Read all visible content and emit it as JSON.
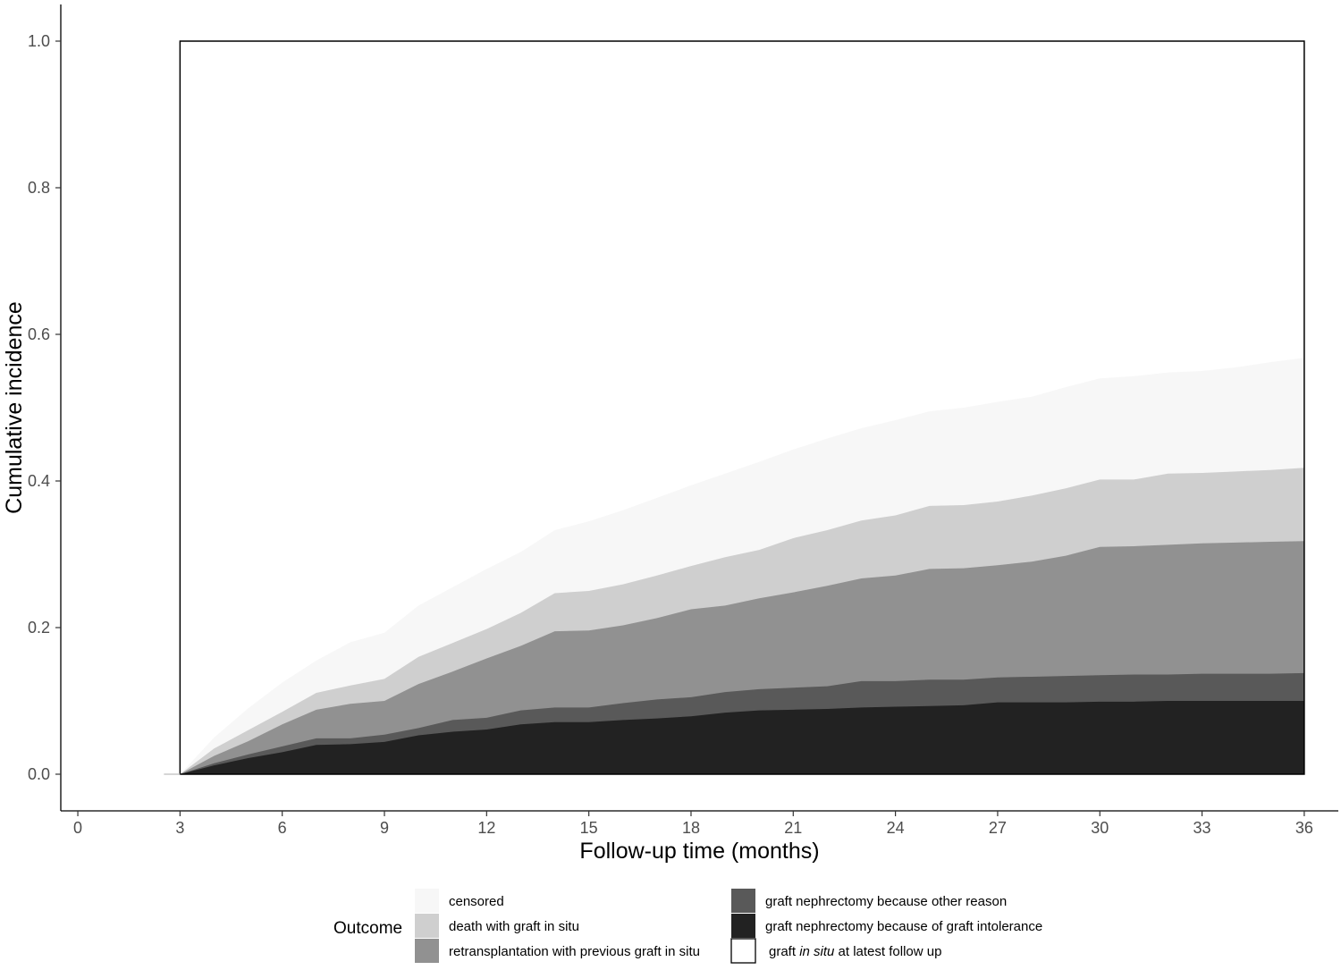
{
  "chart_data": {
    "type": "area",
    "stacked": true,
    "xlabel": "Follow-up time (months)",
    "ylabel": "Cumulative incidence",
    "xlim": [
      -0.5,
      37
    ],
    "ylim": [
      -0.05,
      1.05
    ],
    "x_ticks": [
      0,
      3,
      6,
      9,
      12,
      15,
      18,
      21,
      24,
      27,
      30,
      33,
      36
    ],
    "y_ticks": [
      0.0,
      0.2,
      0.4,
      0.6,
      0.8,
      1.0
    ],
    "y_tick_labels": [
      "0.0",
      "0.2",
      "0.4",
      "0.6",
      "0.8",
      "1.0"
    ],
    "grid": false,
    "legend_position": "bottom",
    "legend_title": "Outcome",
    "x": [
      3,
      4,
      5,
      6,
      7,
      8,
      9,
      10,
      11,
      12,
      13,
      14,
      15,
      16,
      17,
      18,
      19,
      20,
      21,
      22,
      23,
      24,
      25,
      26,
      27,
      28,
      29,
      30,
      31,
      32,
      33,
      34,
      35,
      36
    ],
    "series": [
      {
        "name": "graft nephrectomy because of graft intolerance",
        "color": "#222222",
        "cumulative": [
          0.0,
          0.012,
          0.022,
          0.03,
          0.04,
          0.041,
          0.044,
          0.053,
          0.058,
          0.061,
          0.068,
          0.071,
          0.071,
          0.074,
          0.076,
          0.079,
          0.084,
          0.087,
          0.088,
          0.089,
          0.091,
          0.092,
          0.093,
          0.094,
          0.098,
          0.098,
          0.098,
          0.099,
          0.099,
          0.1,
          0.1,
          0.1,
          0.1,
          0.1
        ]
      },
      {
        "name": "graft nephrectomy because other reason",
        "color": "#595959",
        "cumulative": [
          0.0,
          0.015,
          0.027,
          0.038,
          0.049,
          0.049,
          0.054,
          0.063,
          0.074,
          0.077,
          0.087,
          0.091,
          0.091,
          0.097,
          0.102,
          0.105,
          0.112,
          0.116,
          0.118,
          0.12,
          0.127,
          0.127,
          0.129,
          0.129,
          0.132,
          0.133,
          0.134,
          0.135,
          0.136,
          0.136,
          0.137,
          0.137,
          0.137,
          0.138
        ]
      },
      {
        "name": "retransplantation with previous graft in situ",
        "color": "#919191",
        "cumulative": [
          0.0,
          0.025,
          0.045,
          0.068,
          0.088,
          0.096,
          0.1,
          0.123,
          0.14,
          0.158,
          0.175,
          0.195,
          0.196,
          0.203,
          0.213,
          0.225,
          0.23,
          0.24,
          0.248,
          0.257,
          0.267,
          0.271,
          0.28,
          0.281,
          0.285,
          0.29,
          0.298,
          0.31,
          0.311,
          0.313,
          0.315,
          0.316,
          0.317,
          0.318
        ]
      },
      {
        "name": "death with graft in situ",
        "color": "#cfcfcf",
        "cumulative": [
          0.0,
          0.035,
          0.06,
          0.085,
          0.111,
          0.121,
          0.13,
          0.16,
          0.179,
          0.198,
          0.22,
          0.247,
          0.25,
          0.259,
          0.271,
          0.284,
          0.296,
          0.306,
          0.322,
          0.333,
          0.346,
          0.353,
          0.366,
          0.367,
          0.372,
          0.38,
          0.39,
          0.402,
          0.402,
          0.41,
          0.411,
          0.413,
          0.415,
          0.418
        ]
      },
      {
        "name": "censored",
        "color": "#f7f7f7",
        "cumulative": [
          0.0,
          0.05,
          0.09,
          0.125,
          0.155,
          0.18,
          0.193,
          0.23,
          0.255,
          0.28,
          0.303,
          0.333,
          0.345,
          0.36,
          0.377,
          0.394,
          0.41,
          0.426,
          0.443,
          0.458,
          0.472,
          0.483,
          0.495,
          0.5,
          0.508,
          0.515,
          0.528,
          0.54,
          0.543,
          0.548,
          0.55,
          0.555,
          0.562,
          0.568
        ]
      },
      {
        "name": "graft in situ at latest follow up",
        "color": "#ffffff",
        "cumulative": [
          1.0,
          1.0,
          1.0,
          1.0,
          1.0,
          1.0,
          1.0,
          1.0,
          1.0,
          1.0,
          1.0,
          1.0,
          1.0,
          1.0,
          1.0,
          1.0,
          1.0,
          1.0,
          1.0,
          1.0,
          1.0,
          1.0,
          1.0,
          1.0,
          1.0,
          1.0,
          1.0,
          1.0,
          1.0,
          1.0,
          1.0,
          1.0,
          1.0,
          1.0
        ]
      }
    ],
    "legend": [
      {
        "label": "censored",
        "color": "#f7f7f7"
      },
      {
        "label": "death with graft in situ",
        "color": "#cfcfcf"
      },
      {
        "label": "retransplantation with previous graft in situ",
        "color": "#919191"
      },
      {
        "label": "graft nephrectomy because other reason",
        "color": "#595959"
      },
      {
        "label": "graft nephrectomy because of graft intolerance",
        "color": "#222222"
      },
      {
        "label_parts": [
          "graft ",
          "in situ",
          " at latest follow up"
        ],
        "color": "#ffffff"
      }
    ]
  }
}
